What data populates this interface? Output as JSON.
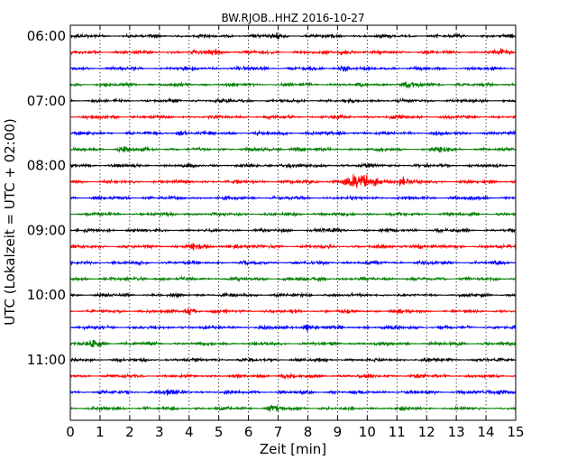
{
  "chart_data": {
    "type": "line",
    "title": "BW.RJOB..HHZ 2016-10-27",
    "xlabel": "Zeit  [min]",
    "ylabel": "UTC (Lokalzeit = UTC + 02:00)",
    "xlim": [
      0,
      15
    ],
    "x_ticks": [
      "0",
      "1",
      "2",
      "3",
      "4",
      "5",
      "6",
      "7",
      "8",
      "9",
      "10",
      "11",
      "12",
      "13",
      "14",
      "15"
    ],
    "y_ticks": [
      "06:00",
      "07:00",
      "08:00",
      "09:00",
      "10:00",
      "11:00"
    ],
    "grid": "vertical dotted",
    "colors": [
      "#000000",
      "#ff0000",
      "#0000ff",
      "#007f00"
    ],
    "traces": [
      {
        "start": "06:00",
        "events": [
          {
            "x": 7.0,
            "amp": 1.2
          }
        ]
      },
      {
        "start": "06:15",
        "events": [
          {
            "x": 4.8,
            "amp": 1.6
          },
          {
            "x": 9.2,
            "amp": 1.4
          },
          {
            "x": 14.5,
            "amp": 1.2
          }
        ]
      },
      {
        "start": "06:30",
        "events": [
          {
            "x": 9.2,
            "amp": 1.4
          }
        ]
      },
      {
        "start": "06:45",
        "events": [
          {
            "x": 11.4,
            "amp": 1.5
          }
        ]
      },
      {
        "start": "07:00",
        "events": []
      },
      {
        "start": "07:15",
        "events": []
      },
      {
        "start": "07:30",
        "events": [
          {
            "x": 3.8,
            "amp": 1.2
          }
        ]
      },
      {
        "start": "07:45",
        "events": [
          {
            "x": 1.8,
            "amp": 1.0
          },
          {
            "x": 7.6,
            "amp": 1.0
          },
          {
            "x": 12.5,
            "amp": 1.0
          }
        ]
      },
      {
        "start": "08:00",
        "events": [
          {
            "x": 7.2,
            "amp": 1.0
          }
        ]
      },
      {
        "start": "08:15",
        "events": [
          {
            "x": 9.8,
            "amp": 4.2
          },
          {
            "x": 11.2,
            "amp": 2.5
          }
        ]
      },
      {
        "start": "08:30",
        "events": []
      },
      {
        "start": "08:45",
        "events": []
      },
      {
        "start": "09:00",
        "events": [
          {
            "x": 8.6,
            "amp": 1.0
          }
        ]
      },
      {
        "start": "09:15",
        "events": [
          {
            "x": 4.1,
            "amp": 1.3
          },
          {
            "x": 5.6,
            "amp": 1.3
          },
          {
            "x": 11.7,
            "amp": 1.3
          }
        ]
      },
      {
        "start": "09:30",
        "events": []
      },
      {
        "start": "09:45",
        "events": [
          {
            "x": 2.3,
            "amp": 1.0
          },
          {
            "x": 8.5,
            "amp": 1.0
          }
        ]
      },
      {
        "start": "10:00",
        "events": []
      },
      {
        "start": "10:15",
        "events": [
          {
            "x": 4.0,
            "amp": 1.7
          }
        ]
      },
      {
        "start": "10:30",
        "events": [
          {
            "x": 8.0,
            "amp": 1.9
          }
        ]
      },
      {
        "start": "10:45",
        "events": [
          {
            "x": 0.8,
            "amp": 1.6
          }
        ]
      },
      {
        "start": "11:00",
        "events": []
      },
      {
        "start": "11:15",
        "events": [
          {
            "x": 7.2,
            "amp": 1.0
          }
        ]
      },
      {
        "start": "11:30",
        "events": [
          {
            "x": 3.3,
            "amp": 1.2
          },
          {
            "x": 14.5,
            "amp": 1.3
          }
        ]
      },
      {
        "start": "11:45",
        "events": [
          {
            "x": 6.8,
            "amp": 1.2
          }
        ]
      }
    ]
  }
}
